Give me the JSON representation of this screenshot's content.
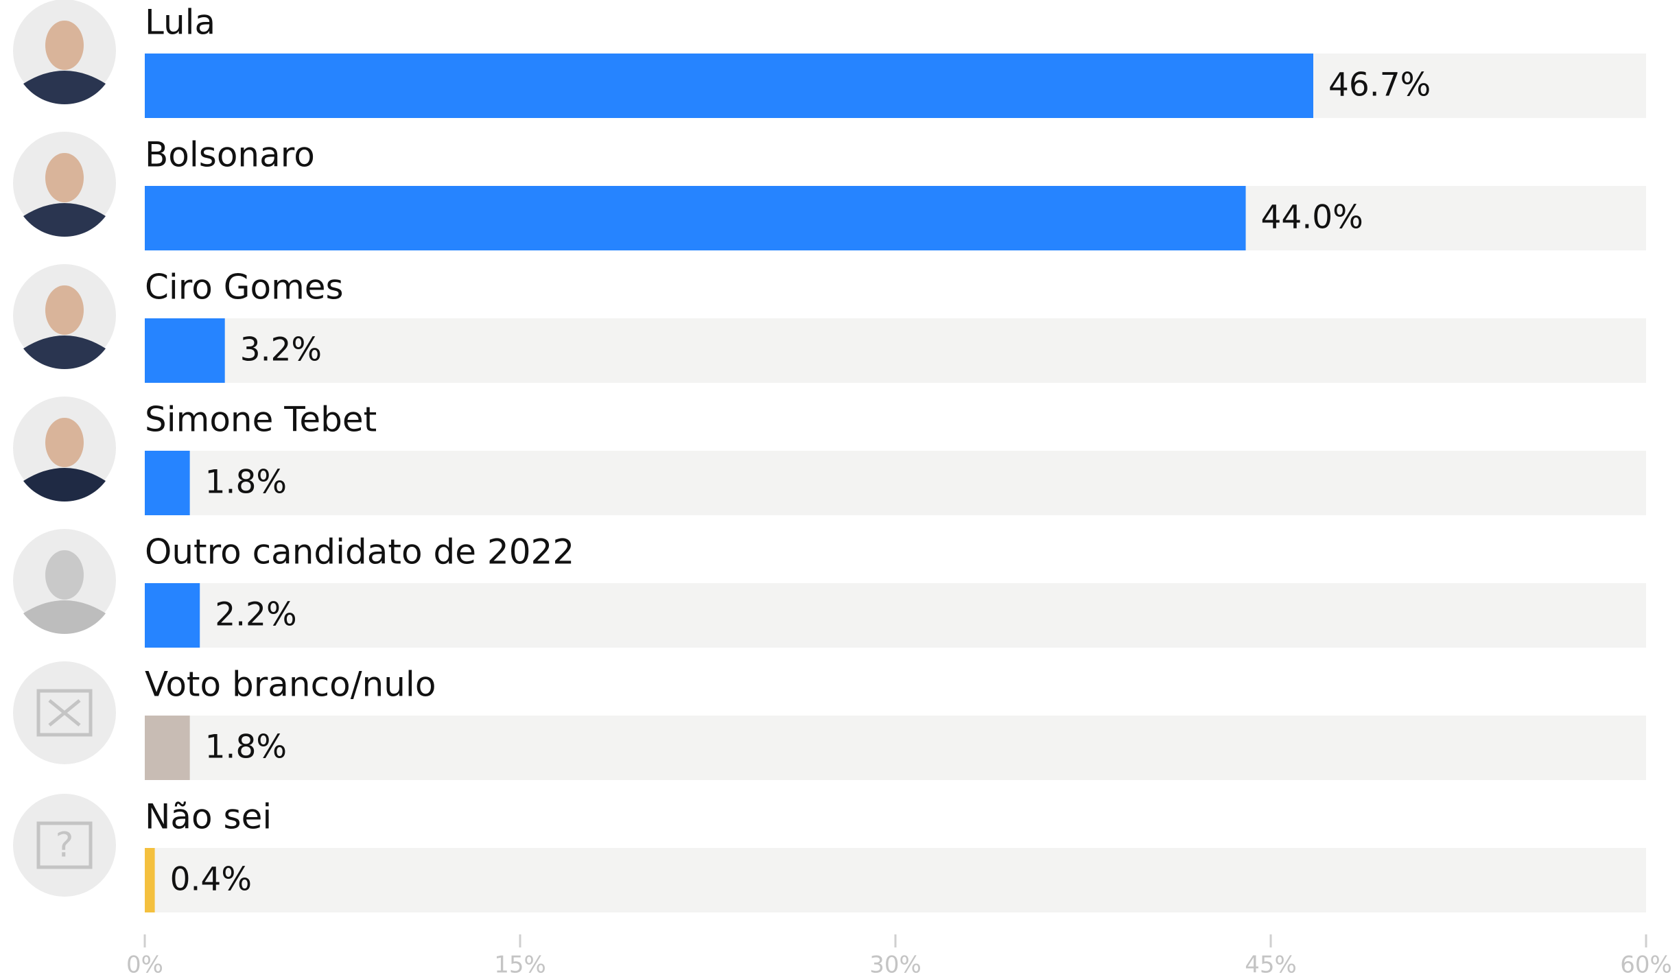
{
  "chart_data": {
    "type": "bar",
    "orientation": "horizontal",
    "categories": [
      "Lula",
      "Bolsonaro",
      "Ciro Gomes",
      "Simone Tebet",
      "Outro candidato de 2022",
      "Voto branco/nulo",
      "Não sei"
    ],
    "values": [
      46.7,
      44.0,
      3.2,
      1.8,
      2.2,
      1.8,
      0.4
    ],
    "value_labels": [
      "46.7%",
      "44.0%",
      "3.2%",
      "1.8%",
      "2.2%",
      "1.8%",
      "0.4%"
    ],
    "colors": [
      "#2684ff",
      "#2684ff",
      "#2684ff",
      "#2684ff",
      "#2684ff",
      "#c8bcb4",
      "#f4c03e"
    ],
    "xlim": [
      0,
      60
    ],
    "xticks": [
      {
        "value": 0,
        "label": "0%"
      },
      {
        "value": 15,
        "label": "15%"
      },
      {
        "value": 30,
        "label": "30%"
      },
      {
        "value": 45,
        "label": "45%"
      },
      {
        "value": 60,
        "label": "60%"
      }
    ]
  }
}
